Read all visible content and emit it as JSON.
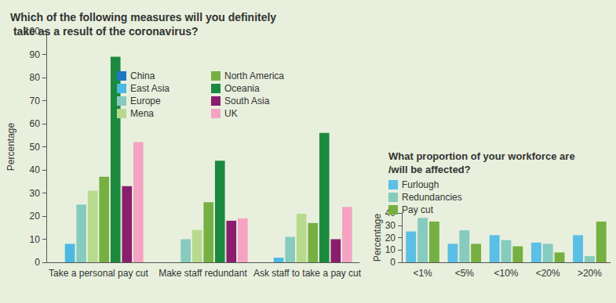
{
  "chart_data": [
    {
      "type": "bar",
      "title": "Which of the following measures will you definitely take as a result of the coronavirus?",
      "y_label": "Percentage",
      "categories": [
        "Take a personal pay cut",
        "Make staff redundant",
        "Ask staff to take a pay cut"
      ],
      "series": [
        {
          "name": "China",
          "color": "#1f78c1",
          "values": [
            0,
            0,
            0
          ]
        },
        {
          "name": "East Asia",
          "color": "#4cb9e3",
          "values": [
            8,
            0,
            2
          ]
        },
        {
          "name": "Europe",
          "color": "#86cbbe",
          "values": [
            25,
            10,
            11
          ]
        },
        {
          "name": "Mena",
          "color": "#b8da8f",
          "values": [
            31,
            14,
            21
          ]
        },
        {
          "name": "North America",
          "color": "#76b043",
          "values": [
            37,
            26,
            17
          ]
        },
        {
          "name": "Oceania",
          "color": "#1b8a3e",
          "values": [
            89,
            44,
            56
          ]
        },
        {
          "name": "South Asia",
          "color": "#8a1d6e",
          "values": [
            33,
            18,
            10
          ]
        },
        {
          "name": "UK",
          "color": "#f4a3c3",
          "values": [
            52,
            19,
            24
          ]
        }
      ],
      "ylim": [
        0,
        100
      ],
      "yticks": [
        0,
        10,
        20,
        30,
        40,
        50,
        60,
        70,
        80,
        90,
        100
      ],
      "grid": false,
      "legend": "upper center"
    },
    {
      "type": "bar",
      "title": "What proportion of your workforce are/will be affected?",
      "y_label": "Percentage",
      "categories": [
        "<1%",
        "<5%",
        "<10%",
        "<20%",
        ">20%"
      ],
      "series": [
        {
          "name": "Furlough",
          "color": "#5bbfe6",
          "values": [
            25,
            15,
            22,
            16,
            22
          ]
        },
        {
          "name": "Redundancies",
          "color": "#86cbbe",
          "values": [
            36,
            26,
            18,
            15,
            5
          ]
        },
        {
          "name": "Pay cut",
          "color": "#76b043",
          "values": [
            33,
            15,
            13,
            8,
            33
          ]
        }
      ],
      "ylim": [
        0,
        40
      ],
      "yticks": [
        0,
        10,
        20,
        30,
        40
      ],
      "grid": false,
      "legend": "upper left"
    }
  ]
}
